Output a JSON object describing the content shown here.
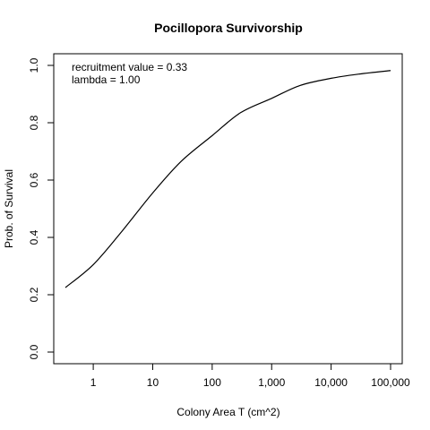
{
  "chart_data": {
    "type": "line",
    "title": "Pocillopora Survivorship",
    "xlabel": "Colony Area T (cm^2)",
    "ylabel": "Prob. of Survival",
    "x_scale": "log10",
    "xlim": [
      0.34,
      100000
    ],
    "ylim": [
      0.0,
      1.0
    ],
    "grid": false,
    "x_ticks": [
      {
        "value": 1,
        "label": "1"
      },
      {
        "value": 10,
        "label": "10"
      },
      {
        "value": 100,
        "label": "100"
      },
      {
        "value": 1000,
        "label": "1,000"
      },
      {
        "value": 10000,
        "label": "10,000"
      },
      {
        "value": 100000,
        "label": "100,000"
      }
    ],
    "y_ticks": [
      {
        "value": 0.0,
        "label": "0.0"
      },
      {
        "value": 0.2,
        "label": "0.2"
      },
      {
        "value": 0.4,
        "label": "0.4"
      },
      {
        "value": 0.6,
        "label": "0.6"
      },
      {
        "value": 0.8,
        "label": "0.8"
      },
      {
        "value": 1.0,
        "label": "1.0"
      }
    ],
    "annotations": [
      "recruitment value = 0.33",
      "lambda = 1.00"
    ],
    "series": [
      {
        "x": [
          0.34,
          1,
          3,
          10,
          30,
          100,
          300,
          1000,
          3000,
          10000,
          30000,
          100000
        ],
        "y": [
          0.225,
          0.305,
          0.42,
          0.555,
          0.665,
          0.755,
          0.835,
          0.885,
          0.93,
          0.955,
          0.97,
          0.982
        ]
      }
    ]
  }
}
